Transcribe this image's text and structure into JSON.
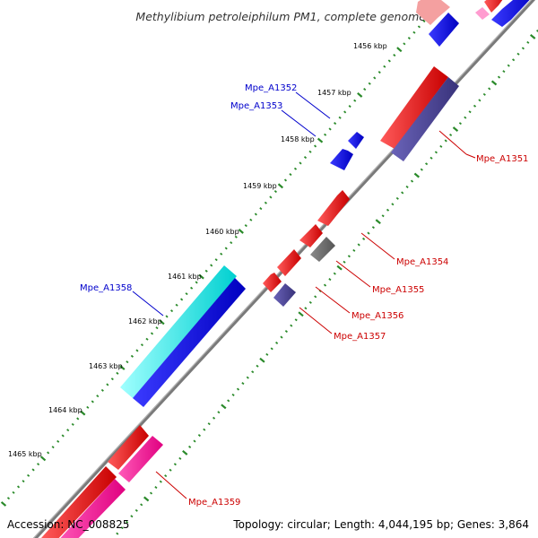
{
  "title": "Methylibium petroleiphilum PM1, complete genome",
  "footer": {
    "accession": "Accession: NC_008825",
    "topology": "Topology: circular; Length: 4,044,195 bp; Genes: 3,864"
  },
  "ticks": [
    "1456 kbp",
    "1457 kbp",
    "1458 kbp",
    "1459 kbp",
    "1460 kbp",
    "1461 kbp",
    "1462 kbp",
    "1463 kbp",
    "1464 kbp",
    "1465 kbp"
  ],
  "genes": [
    {
      "name": "Mpe_A1351",
      "strand": "minus",
      "color": "#cc0000"
    },
    {
      "name": "Mpe_A1352",
      "strand": "plus",
      "color": "#0000cc"
    },
    {
      "name": "Mpe_A1353",
      "strand": "plus",
      "color": "#0000cc"
    },
    {
      "name": "Mpe_A1354",
      "strand": "minus",
      "color": "#cc0000"
    },
    {
      "name": "Mpe_A1355",
      "strand": "minus",
      "color": "#cc0000"
    },
    {
      "name": "Mpe_A1356",
      "strand": "minus",
      "color": "#cc0000"
    },
    {
      "name": "Mpe_A1357",
      "strand": "minus",
      "color": "#cc0000"
    },
    {
      "name": "Mpe_A1358",
      "strand": "plus",
      "color": "#0000cc"
    },
    {
      "name": "Mpe_A1359",
      "strand": "minus",
      "color": "#cc0000"
    }
  ],
  "colors": {
    "cds_red": "#ff0000",
    "cds_blue": "#0000ff",
    "cds_cyan": "#00ffff",
    "cds_navy": "#4b4596",
    "cds_gray": "#6e6e6e",
    "cds_pink": "#ff1f9f",
    "backbone": "#808080",
    "tick_green": "#2a8a2a"
  }
}
